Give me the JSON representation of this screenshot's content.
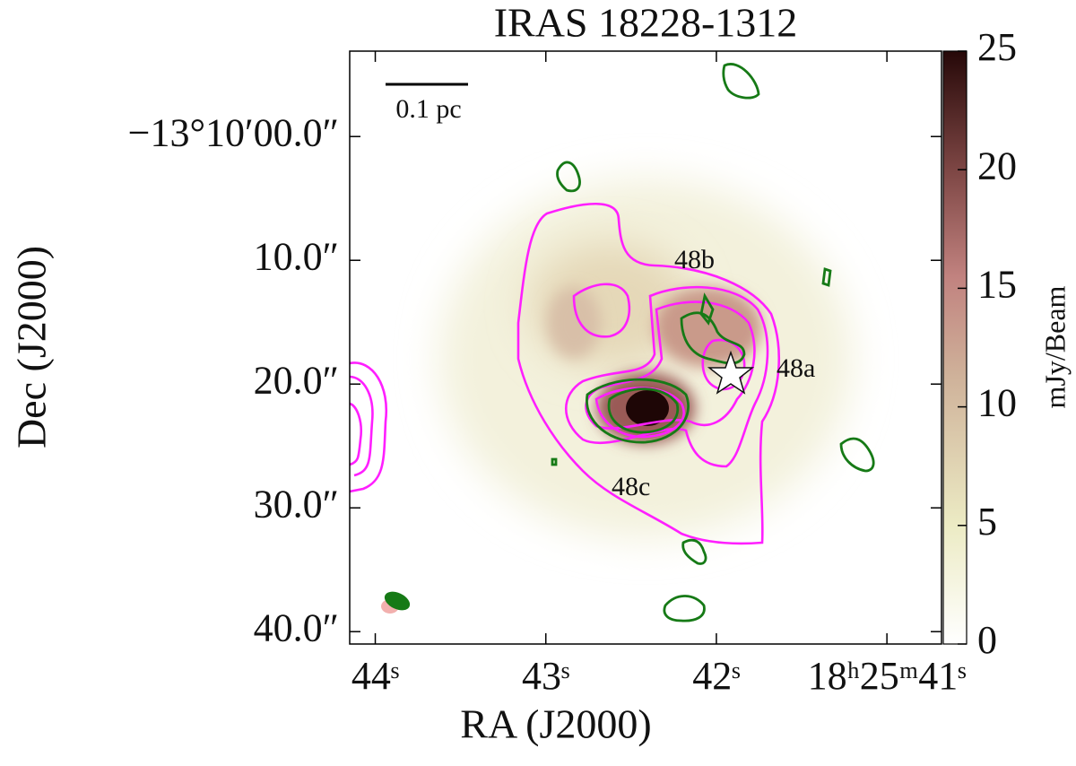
{
  "chart_data": {
    "type": "image",
    "title": "IRAS 18228-1312",
    "xlabel": "RA (J2000)",
    "ylabel": "Dec (J2000)",
    "xlim": [
      44.15,
      40.68
    ],
    "xticks": [
      {
        "value": 44,
        "label": "44ˢ"
      },
      {
        "value": 43,
        "label": "43ˢ"
      },
      {
        "value": 42,
        "label": "42ˢ"
      },
      {
        "value": 41,
        "label": "18ʰ25ᵐ41ˢ"
      }
    ],
    "ylim": [
      41.0,
      -6.9
    ],
    "yticks": [
      {
        "value": 0,
        "label": "−13°10′00.0″"
      },
      {
        "value": 10,
        "label": "10.0″"
      },
      {
        "value": 20,
        "label": "20.0″"
      },
      {
        "value": 30,
        "label": "30.0″"
      },
      {
        "value": 40,
        "label": "40.0″"
      }
    ],
    "colorbar": {
      "label": "mJy/Beam",
      "lim": [
        0,
        25
      ],
      "ticks": [
        0,
        5,
        10,
        15,
        20,
        25
      ]
    },
    "scale_bar": "0.1 pc",
    "annotations": [
      "48a",
      "48b",
      "48c"
    ]
  }
}
